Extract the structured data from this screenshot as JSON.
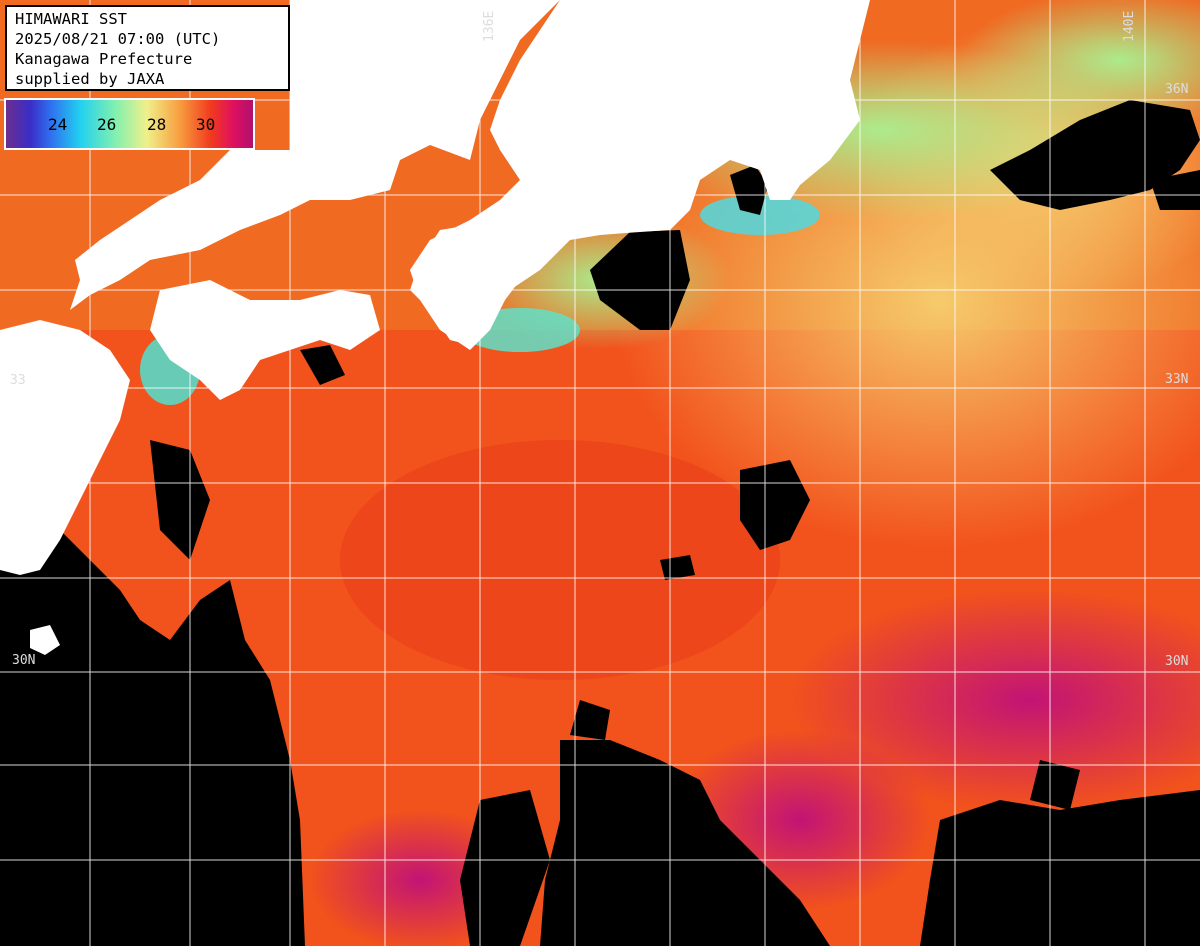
{
  "info": {
    "title": "HIMAWARI SST",
    "datetime": "2025/08/21 07:00 (UTC)",
    "region": "Kanagawa Prefecture",
    "credit": "supplied by JAXA"
  },
  "legend": {
    "ticks": [
      "24",
      "26",
      "28",
      "30"
    ],
    "colors": [
      "#6b2e8f",
      "#2f6ff0",
      "#22d0f0",
      "#7ff0b0",
      "#f0f08a",
      "#f8a040",
      "#f03a1e",
      "#b0106e"
    ]
  },
  "grid_labels": {
    "lat_33_left": "33",
    "lat_30_left": "30N",
    "lat_36_right": "36N",
    "lat_33_right": "33N",
    "lat_30_right": "30N",
    "lon_136": "136E",
    "lon_140": "140E"
  }
}
